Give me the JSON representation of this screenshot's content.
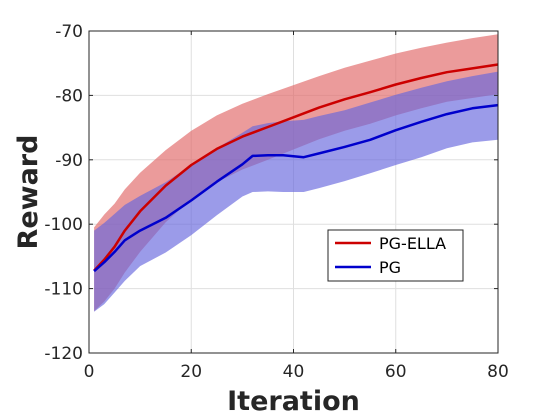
{
  "chart_data": {
    "type": "line",
    "title": "",
    "xlabel": "Iteration",
    "ylabel": "Reward",
    "xlim": [
      0,
      80
    ],
    "ylim": [
      -120,
      -70
    ],
    "xticks": [
      0,
      20,
      40,
      60,
      80
    ],
    "yticks": [
      -120,
      -110,
      -100,
      -90,
      -80,
      -70
    ],
    "xtick_labels": [
      "0",
      "20",
      "40",
      "60",
      "80"
    ],
    "ytick_labels": [
      "-120",
      "-110",
      "-100",
      "-90",
      "-80",
      "-70"
    ],
    "grid": true,
    "legend_position": "lower-right",
    "series": [
      {
        "name": "PG-ELLA",
        "color": "#cc0000",
        "band_color": "#e06666",
        "x": [
          1,
          3,
          5,
          7,
          10,
          15,
          20,
          25,
          30,
          35,
          40,
          45,
          50,
          55,
          60,
          65,
          70,
          75,
          80
        ],
        "mean": [
          -107.2,
          -105.5,
          -103.5,
          -101.0,
          -98.0,
          -94.0,
          -90.8,
          -88.3,
          -86.4,
          -84.9,
          -83.4,
          -81.9,
          -80.6,
          -79.5,
          -78.3,
          -77.3,
          -76.4,
          -75.8,
          -75.2
        ],
        "upper": [
          -100.5,
          -98.5,
          -96.8,
          -94.6,
          -92.0,
          -88.5,
          -85.5,
          -83.1,
          -81.3,
          -79.8,
          -78.4,
          -77.0,
          -75.7,
          -74.6,
          -73.5,
          -72.6,
          -71.8,
          -71.1,
          -70.5
        ],
        "lower": [
          -113.5,
          -112.0,
          -110.0,
          -107.5,
          -104.3,
          -99.7,
          -96.1,
          -93.5,
          -91.5,
          -90.0,
          -88.4,
          -86.8,
          -85.5,
          -84.4,
          -83.1,
          -82.0,
          -81.0,
          -80.4,
          -79.8
        ]
      },
      {
        "name": "PG",
        "color": "#0000cc",
        "band_color": "#6666dd",
        "x": [
          1,
          3,
          5,
          7,
          10,
          15,
          20,
          25,
          30,
          32,
          35,
          38,
          42,
          45,
          50,
          55,
          60,
          65,
          70,
          75,
          80
        ],
        "mean": [
          -107.3,
          -105.9,
          -104.3,
          -102.5,
          -101.0,
          -99.0,
          -96.3,
          -93.4,
          -90.7,
          -89.4,
          -89.3,
          -89.3,
          -89.6,
          -89.0,
          -88.0,
          -86.9,
          -85.4,
          -84.1,
          -82.9,
          -82.0,
          -81.5
        ],
        "upper": [
          -101.0,
          -99.8,
          -98.4,
          -97.0,
          -95.6,
          -93.5,
          -90.8,
          -88.2,
          -85.8,
          -84.8,
          -84.3,
          -84.0,
          -83.8,
          -83.2,
          -82.3,
          -81.1,
          -79.9,
          -78.8,
          -77.8,
          -77.0,
          -76.3
        ],
        "lower": [
          -113.6,
          -112.4,
          -110.6,
          -108.8,
          -106.5,
          -104.4,
          -101.7,
          -98.6,
          -95.7,
          -95.0,
          -94.9,
          -95.0,
          -95.0,
          -94.4,
          -93.3,
          -92.1,
          -90.8,
          -89.6,
          -88.2,
          -87.3,
          -86.9
        ]
      }
    ]
  }
}
